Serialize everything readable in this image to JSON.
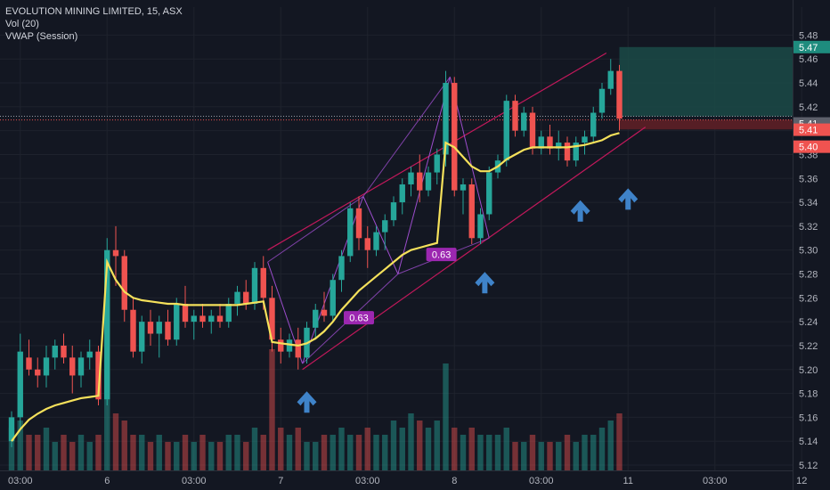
{
  "header": {
    "symbol_line": "EVOLUTION MINING LIMITED, 15, ASX",
    "indicators": [
      "Vol (20)",
      "VWAP (Session)"
    ]
  },
  "colors": {
    "background": "#131722",
    "up": "#26a69a",
    "down": "#ef5350",
    "vwap": "#f5e15b",
    "channel": "#c2185b",
    "pattern": "#9c4dcc",
    "pattern_label_bg": "#9c27b0",
    "arrow": "#3f83c9",
    "target_zone": "#1b4a47",
    "stop_zone": "#5a1f26"
  },
  "chart_data": {
    "type": "candlestick",
    "title": "EVOLUTION MINING LIMITED, 15, ASX",
    "ylim": [
      5.12,
      5.49
    ],
    "y_ticks": [
      "5.48",
      "5.46",
      "5.44",
      "5.42",
      "5.40",
      "5.38",
      "5.36",
      "5.34",
      "5.32",
      "5.30",
      "5.28",
      "5.26",
      "5.24",
      "5.22",
      "5.20",
      "5.18",
      "5.16",
      "5.14",
      "5.12"
    ],
    "x_ticks": [
      {
        "i": 1,
        "label": "03:00"
      },
      {
        "i": 11,
        "label": "6"
      },
      {
        "i": 21,
        "label": "03:00"
      },
      {
        "i": 31,
        "label": "7"
      },
      {
        "i": 41,
        "label": "03:00"
      },
      {
        "i": 51,
        "label": "8"
      },
      {
        "i": 61,
        "label": "03:00"
      },
      {
        "i": 71,
        "label": "11"
      },
      {
        "i": 81,
        "label": "03:00"
      },
      {
        "i": 91,
        "label": "12"
      }
    ],
    "price_labels": [
      {
        "text": "5.47",
        "value": 5.47,
        "kind": "target"
      },
      {
        "text": "5.41",
        "value": 5.412,
        "kind": "last"
      },
      {
        "text": "5.41",
        "value": 5.409,
        "kind": "current"
      },
      {
        "text": "5.40",
        "value": 5.4,
        "kind": "stop"
      }
    ],
    "ohlc": [
      [
        5.14,
        5.165,
        5.135,
        5.16
      ],
      [
        5.16,
        5.23,
        5.15,
        5.215
      ],
      [
        5.21,
        5.225,
        5.195,
        5.2
      ],
      [
        5.2,
        5.21,
        5.185,
        5.195
      ],
      [
        5.195,
        5.22,
        5.185,
        5.21
      ],
      [
        5.21,
        5.225,
        5.2,
        5.22
      ],
      [
        5.22,
        5.23,
        5.205,
        5.21
      ],
      [
        5.21,
        5.22,
        5.18,
        5.195
      ],
      [
        5.195,
        5.215,
        5.185,
        5.21
      ],
      [
        5.21,
        5.225,
        5.2,
        5.215
      ],
      [
        5.215,
        5.22,
        5.17,
        5.175
      ],
      [
        5.175,
        5.31,
        5.17,
        5.3
      ],
      [
        5.3,
        5.32,
        5.27,
        5.295
      ],
      [
        5.295,
        5.3,
        5.24,
        5.25
      ],
      [
        5.25,
        5.26,
        5.21,
        5.215
      ],
      [
        5.215,
        5.245,
        5.205,
        5.24
      ],
      [
        5.24,
        5.25,
        5.22,
        5.23
      ],
      [
        5.23,
        5.245,
        5.21,
        5.24
      ],
      [
        5.24,
        5.25,
        5.22,
        5.225
      ],
      [
        5.225,
        5.26,
        5.22,
        5.255
      ],
      [
        5.255,
        5.27,
        5.235,
        5.24
      ],
      [
        5.24,
        5.25,
        5.225,
        5.245
      ],
      [
        5.245,
        5.255,
        5.235,
        5.24
      ],
      [
        5.24,
        5.25,
        5.23,
        5.245
      ],
      [
        5.245,
        5.255,
        5.235,
        5.24
      ],
      [
        5.24,
        5.26,
        5.235,
        5.255
      ],
      [
        5.255,
        5.27,
        5.245,
        5.265
      ],
      [
        5.265,
        5.275,
        5.25,
        5.255
      ],
      [
        5.255,
        5.29,
        5.25,
        5.285
      ],
      [
        5.285,
        5.295,
        5.25,
        5.26
      ],
      [
        5.26,
        5.27,
        5.215,
        5.225
      ],
      [
        5.225,
        5.235,
        5.205,
        5.215
      ],
      [
        5.215,
        5.23,
        5.21,
        5.225
      ],
      [
        5.225,
        5.235,
        5.2,
        5.21
      ],
      [
        5.21,
        5.24,
        5.205,
        5.235
      ],
      [
        5.235,
        5.255,
        5.225,
        5.25
      ],
      [
        5.25,
        5.265,
        5.24,
        5.245
      ],
      [
        5.245,
        5.28,
        5.24,
        5.275
      ],
      [
        5.275,
        5.3,
        5.265,
        5.295
      ],
      [
        5.295,
        5.34,
        5.29,
        5.335
      ],
      [
        5.335,
        5.345,
        5.3,
        5.31
      ],
      [
        5.31,
        5.32,
        5.285,
        5.3
      ],
      [
        5.3,
        5.32,
        5.295,
        5.315
      ],
      [
        5.315,
        5.33,
        5.3,
        5.325
      ],
      [
        5.325,
        5.345,
        5.32,
        5.34
      ],
      [
        5.34,
        5.36,
        5.33,
        5.355
      ],
      [
        5.355,
        5.37,
        5.345,
        5.365
      ],
      [
        5.365,
        5.38,
        5.34,
        5.35
      ],
      [
        5.35,
        5.37,
        5.345,
        5.365
      ],
      [
        5.365,
        5.385,
        5.355,
        5.38
      ],
      [
        5.38,
        5.45,
        5.37,
        5.44
      ],
      [
        5.44,
        5.445,
        5.345,
        5.35
      ],
      [
        5.35,
        5.36,
        5.33,
        5.355
      ],
      [
        5.355,
        5.36,
        5.305,
        5.31
      ],
      [
        5.31,
        5.335,
        5.305,
        5.33
      ],
      [
        5.33,
        5.37,
        5.325,
        5.365
      ],
      [
        5.365,
        5.38,
        5.36,
        5.375
      ],
      [
        5.375,
        5.43,
        5.37,
        5.425
      ],
      [
        5.425,
        5.43,
        5.395,
        5.4
      ],
      [
        5.4,
        5.42,
        5.395,
        5.415
      ],
      [
        5.415,
        5.42,
        5.38,
        5.385
      ],
      [
        5.385,
        5.4,
        5.38,
        5.395
      ],
      [
        5.395,
        5.405,
        5.38,
        5.385
      ],
      [
        5.385,
        5.4,
        5.375,
        5.39
      ],
      [
        5.39,
        5.395,
        5.37,
        5.375
      ],
      [
        5.375,
        5.395,
        5.37,
        5.39
      ],
      [
        5.39,
        5.4,
        5.38,
        5.395
      ],
      [
        5.395,
        5.42,
        5.39,
        5.415
      ],
      [
        5.415,
        5.44,
        5.41,
        5.435
      ],
      [
        5.435,
        5.46,
        5.43,
        5.45
      ],
      [
        5.45,
        5.455,
        5.4,
        5.41
      ]
    ],
    "volume": [
      0.06,
      0.07,
      0.05,
      0.05,
      0.06,
      0.04,
      0.05,
      0.04,
      0.05,
      0.04,
      0.05,
      0.14,
      0.08,
      0.07,
      0.05,
      0.05,
      0.04,
      0.05,
      0.04,
      0.04,
      0.05,
      0.04,
      0.05,
      0.04,
      0.04,
      0.05,
      0.05,
      0.04,
      0.06,
      0.05,
      0.17,
      0.06,
      0.05,
      0.06,
      0.04,
      0.04,
      0.05,
      0.05,
      0.06,
      0.05,
      0.05,
      0.06,
      0.05,
      0.05,
      0.07,
      0.06,
      0.08,
      0.07,
      0.06,
      0.07,
      0.15,
      0.06,
      0.05,
      0.06,
      0.05,
      0.05,
      0.05,
      0.06,
      0.04,
      0.04,
      0.05,
      0.04,
      0.04,
      0.04,
      0.05,
      0.04,
      0.05,
      0.05,
      0.06,
      0.07,
      0.08
    ],
    "vwap": [
      5.14,
      5.15,
      5.158,
      5.163,
      5.167,
      5.17,
      5.172,
      5.174,
      5.176,
      5.177,
      5.178,
      5.29,
      5.275,
      5.265,
      5.26,
      5.258,
      5.257,
      5.256,
      5.255,
      5.255,
      5.254,
      5.254,
      5.254,
      5.254,
      5.254,
      5.254,
      5.254,
      5.255,
      5.256,
      5.257,
      5.223,
      5.222,
      5.221,
      5.22,
      5.222,
      5.226,
      5.232,
      5.24,
      5.25,
      5.258,
      5.266,
      5.272,
      5.278,
      5.284,
      5.29,
      5.296,
      5.3,
      5.302,
      5.304,
      5.306,
      5.39,
      5.386,
      5.378,
      5.37,
      5.366,
      5.366,
      5.37,
      5.376,
      5.38,
      5.384,
      5.386,
      5.386,
      5.386,
      5.386,
      5.386,
      5.387,
      5.388,
      5.39,
      5.392,
      5.396,
      5.398
    ],
    "channel_upper": [
      {
        "i": 29.5,
        "p": 5.3
      },
      {
        "i": 68.5,
        "p": 5.465
      }
    ],
    "channel_lower": [
      {
        "i": 33.5,
        "p": 5.2
      },
      {
        "i": 73.0,
        "p": 5.403
      }
    ],
    "pattern_points": [
      {
        "i": 29.5,
        "p": 5.29
      },
      {
        "i": 33.5,
        "p": 5.205
      },
      {
        "i": 40.5,
        "p": 5.345
      },
      {
        "i": 44.5,
        "p": 5.28
      },
      {
        "i": 50.5,
        "p": 5.445
      },
      {
        "i": 55.0,
        "p": 5.31
      }
    ],
    "pattern_labels": [
      {
        "text": "0.63",
        "i": 40.0,
        "p": 5.243
      },
      {
        "text": "0.63",
        "i": 49.5,
        "p": 5.296
      }
    ],
    "arrows": [
      {
        "i": 34.0,
        "p": 5.175
      },
      {
        "i": 54.5,
        "p": 5.275
      },
      {
        "i": 65.5,
        "p": 5.335
      },
      {
        "i": 71.0,
        "p": 5.345
      }
    ],
    "target_zone": {
      "i_start": 70.0,
      "p_top": 5.47,
      "p_bottom": 5.412
    },
    "stop_zone": {
      "i_start": 70.0,
      "p_top": 5.409,
      "p_bottom": 5.401
    },
    "dotted_lines": [
      5.412,
      5.409
    ]
  }
}
